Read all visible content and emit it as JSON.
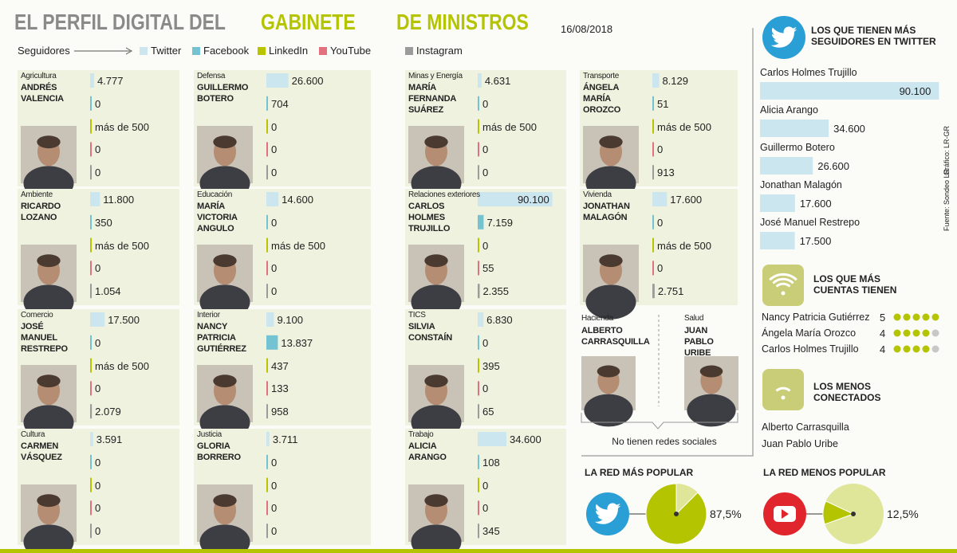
{
  "header": {
    "title_part1": "EL PERFIL DIGITAL DEL",
    "title_part2": "GABINETE",
    "title_part3": "DE MINISTROS",
    "date": "16/08/2018"
  },
  "legend": {
    "label": "Seguidores",
    "networks": [
      {
        "name": "Twitter",
        "color": "#cce6f0"
      },
      {
        "name": "Facebook",
        "color": "#74c3d3"
      },
      {
        "name": "LinkedIn",
        "color": "#b9c300"
      },
      {
        "name": "YouTube",
        "color": "#e2707e"
      },
      {
        "name": "Instagram",
        "color": "#9b9b9b"
      }
    ]
  },
  "ministers": [
    {
      "ministry": "Agricultura",
      "name": "ANDRÉS VALENCIA",
      "values": [
        4777,
        0,
        500,
        0,
        0
      ],
      "value_labels": [
        "4.777",
        "0",
        "más de 500",
        "0",
        "0"
      ]
    },
    {
      "ministry": "Ambiente",
      "name": "RICARDO LOZANO",
      "values": [
        11800,
        350,
        500,
        0,
        1054
      ],
      "value_labels": [
        "11.800",
        "350",
        "más de 500",
        "0",
        "1.054"
      ]
    },
    {
      "ministry": "Comercio",
      "name": "JOSÉ MANUEL RESTREPO",
      "values": [
        17500,
        0,
        500,
        0,
        2079
      ],
      "value_labels": [
        "17.500",
        "0",
        "más de 500",
        "0",
        "2.079"
      ]
    },
    {
      "ministry": "Cultura",
      "name": "CARMEN VÁSQUEZ",
      "values": [
        3591,
        0,
        0,
        0,
        0
      ],
      "value_labels": [
        "3.591",
        "0",
        "0",
        "0",
        "0"
      ]
    },
    {
      "ministry": "Defensa",
      "name": "GUILLERMO BOTERO",
      "values": [
        26600,
        704,
        0,
        0,
        0
      ],
      "value_labels": [
        "26.600",
        "704",
        "0",
        "0",
        "0"
      ]
    },
    {
      "ministry": "Educación",
      "name": "MARÍA VICTORIA ANGULO",
      "values": [
        14600,
        0,
        500,
        0,
        0
      ],
      "value_labels": [
        "14.600",
        "0",
        "más de 500",
        "0",
        "0"
      ]
    },
    {
      "ministry": "Interior",
      "name": "NANCY PATRICIA GUTIÉRREZ",
      "values": [
        9100,
        13837,
        437,
        133,
        958
      ],
      "value_labels": [
        "9.100",
        "13.837",
        "437",
        "133",
        "958"
      ]
    },
    {
      "ministry": "Justicia",
      "name": "GLORIA BORRERO",
      "values": [
        3711,
        0,
        0,
        0,
        0
      ],
      "value_labels": [
        "3.711",
        "0",
        "0",
        "0",
        "0"
      ]
    },
    {
      "ministry": "Minas y Energía",
      "name": "MARÍA FERNANDA SUÁREZ",
      "values": [
        4631,
        0,
        500,
        0,
        0
      ],
      "value_labels": [
        "4.631",
        "0",
        "más de 500",
        "0",
        "0"
      ]
    },
    {
      "ministry": "Relaciones exteriores",
      "name": "CARLOS HOLMES TRUJILLO",
      "values": [
        90100,
        7159,
        0,
        55,
        2355
      ],
      "value_labels": [
        "90.100",
        "7.159",
        "0",
        "55",
        "2.355"
      ]
    },
    {
      "ministry": "TICS",
      "name": "SILVIA CONSTAÍN",
      "values": [
        6830,
        0,
        395,
        0,
        65
      ],
      "value_labels": [
        "6.830",
        "0",
        "395",
        "0",
        "65"
      ]
    },
    {
      "ministry": "Trabajo",
      "name": "ALICIA ARANGO",
      "values": [
        34600,
        108,
        0,
        0,
        345
      ],
      "value_labels": [
        "34.600",
        "108",
        "0",
        "0",
        "345"
      ]
    },
    {
      "ministry": "Transporte",
      "name": "ÁNGELA MARÍA OROZCO",
      "values": [
        8129,
        51,
        500,
        0,
        913
      ],
      "value_labels": [
        "8.129",
        "51",
        "más de 500",
        "0",
        "913"
      ]
    },
    {
      "ministry": "Vivienda",
      "name": "JONATHAN MALAGÓN",
      "values": [
        17600,
        0,
        500,
        0,
        2751
      ],
      "value_labels": [
        "17.600",
        "0",
        "más de 500",
        "0",
        "2.751"
      ]
    }
  ],
  "no_networks": {
    "ministers": [
      {
        "ministry": "Hacienda",
        "name": "ALBERTO CARRASQUILLA"
      },
      {
        "ministry": "Salud",
        "name": "JUAN PABLO URIBE"
      }
    ],
    "note": "No tienen redes sociales"
  },
  "top_twitter": {
    "title": "LOS QUE TIENEN MÁS SEGUIDORES EN TWITTER",
    "items": [
      {
        "name": "Carlos Holmes Trujillo",
        "value": 90100,
        "value_label": "90.100"
      },
      {
        "name": "Alicia Arango",
        "value": 34600,
        "value_label": "34.600"
      },
      {
        "name": "Guillermo Botero",
        "value": 26600,
        "value_label": "26.600"
      },
      {
        "name": "Jonathan Malagón",
        "value": 17600,
        "value_label": "17.600"
      },
      {
        "name": "José Manuel Restrepo",
        "value": 17500,
        "value_label": "17.500"
      }
    ]
  },
  "source": "Fuente: Sondeo LR",
  "credit": "Gráfico: LR-GR",
  "most_accounts": {
    "title": "LOS QUE MÁS CUENTAS TIENEN",
    "items": [
      {
        "name": "Nancy Patricia Gutiérrez",
        "value": 5
      },
      {
        "name": "Ángela María Orozco",
        "value": 4
      },
      {
        "name": "Carlos Holmes Trujillo",
        "value": 4
      }
    ]
  },
  "least_connected": {
    "title": "LOS MENOS CONECTADOS",
    "names": [
      "Alberto Carrasquilla",
      "Juan Pablo Uribe"
    ]
  },
  "most_popular": {
    "title": "LA RED MÁS POPULAR",
    "value": 87.5,
    "value_label": "87,5%"
  },
  "least_popular": {
    "title": "LA RED MENOS POPULAR",
    "value": 12.5,
    "value_label": "12,5%"
  }
}
